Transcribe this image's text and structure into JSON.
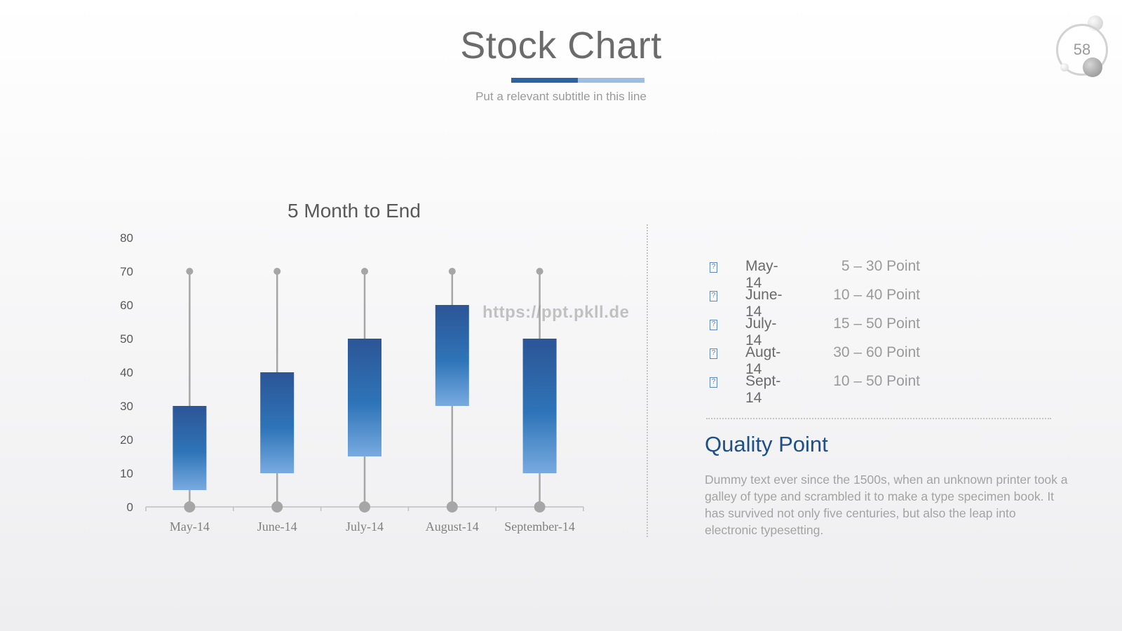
{
  "header": {
    "title": "Stock Chart",
    "subtitle": "Put a relevant subtitle in this line",
    "page_number": "58"
  },
  "watermark": "https://ppt.pkll.de",
  "chart_data": {
    "type": "stock",
    "title": "5 Month to End",
    "categories": [
      "May-14",
      "June-14",
      "July-14",
      "August-14",
      "September-14"
    ],
    "series": [
      {
        "name": "high",
        "values": [
          70,
          70,
          70,
          70,
          70
        ]
      },
      {
        "name": "open",
        "values": [
          5,
          10,
          15,
          60,
          10
        ]
      },
      {
        "name": "close",
        "values": [
          30,
          40,
          50,
          30,
          50
        ]
      },
      {
        "name": "low",
        "values": [
          0,
          0,
          0,
          0,
          0
        ]
      }
    ],
    "ylim": [
      0,
      80
    ],
    "yticks": [
      0,
      10,
      20,
      30,
      40,
      50,
      60,
      70,
      80
    ],
    "grid": false,
    "colors": {
      "box_top": "#2c5596",
      "box_mid": "#2e74b8",
      "box_bottom": "#78aae0",
      "whisker": "#a6a6a6",
      "axis": "#bfbfbf",
      "tick_text": "#595959",
      "cat_text": "#808080",
      "title_text": "#595959"
    }
  },
  "legend": {
    "items": [
      {
        "icon": "?",
        "month": "May-14",
        "range": "5 – 30 Point"
      },
      {
        "icon": "?",
        "month": "June-14",
        "range": "10 – 40 Point"
      },
      {
        "icon": "?",
        "month": "July-14",
        "range": "15 – 50 Point"
      },
      {
        "icon": "?",
        "month": "Augt-14",
        "range": "30 – 60 Point"
      },
      {
        "icon": "?",
        "month": "Sept-14",
        "range": "10 – 50 Point"
      }
    ]
  },
  "info": {
    "heading": "Quality Point",
    "body": "Dummy text ever since the 1500s, when an unknown printer took a galley of type and scrambled it to make a type specimen book. It has survived not only five centuries, but also the leap into electronic typesetting."
  }
}
